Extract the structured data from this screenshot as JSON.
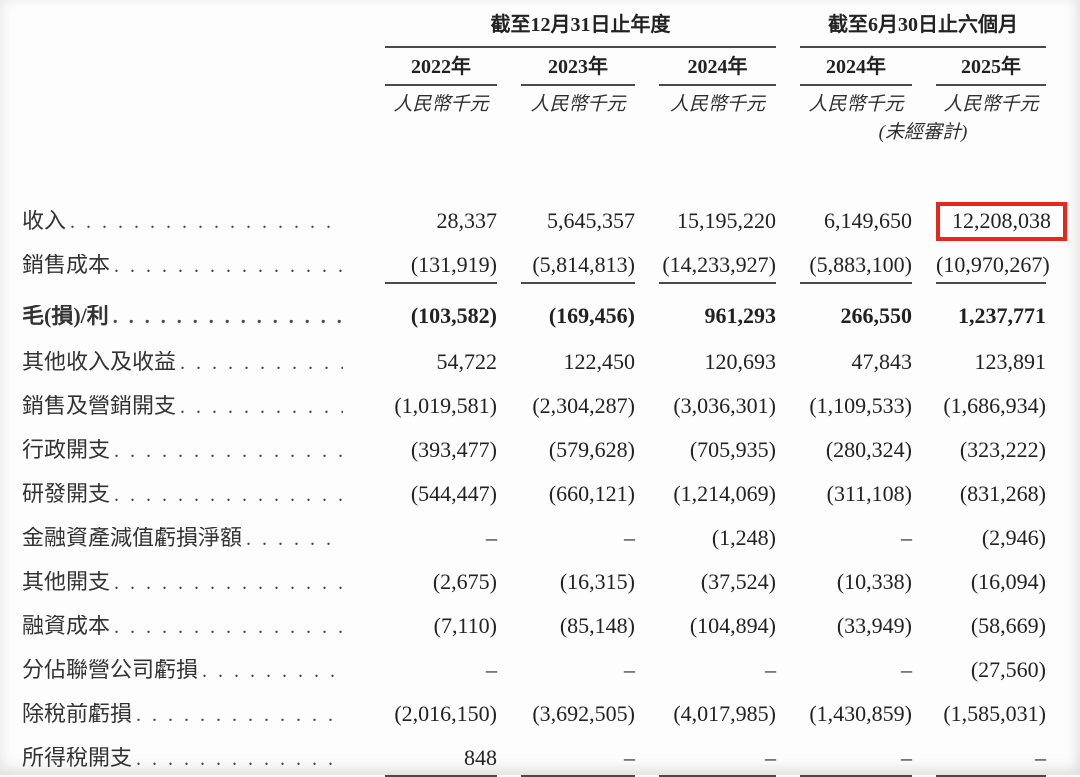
{
  "document_type": "financial-statement-table",
  "accent_red": "#e8271c",
  "table": {
    "col_groups": [
      {
        "title": "截至12月31日止年度",
        "years": [
          "2022年",
          "2023年",
          "2024年"
        ]
      },
      {
        "title": "截至6月30日止六個月",
        "years": [
          "2024年",
          "2025年"
        ]
      }
    ],
    "unit_label": "人民幣千元",
    "unaudited_note": "(未經審計)",
    "rows": [
      {
        "label": "收入",
        "values": [
          "28,337",
          "5,645,357",
          "15,195,220",
          "6,149,650",
          "12,208,038"
        ],
        "highlight_last": true
      },
      {
        "label": "銷售成本",
        "values": [
          "(131,919)",
          "(5,814,813)",
          "(14,233,927)",
          "(5,883,100)",
          "(10,970,267)"
        ],
        "rule_below": true
      },
      {
        "label": "毛(損)/利",
        "values": [
          "(103,582)",
          "(169,456)",
          "961,293",
          "266,550",
          "1,237,771"
        ],
        "bold": true
      },
      {
        "label": "其他收入及收益",
        "values": [
          "54,722",
          "122,450",
          "120,693",
          "47,843",
          "123,891"
        ]
      },
      {
        "label": "銷售及營銷開支",
        "values": [
          "(1,019,581)",
          "(2,304,287)",
          "(3,036,301)",
          "(1,109,533)",
          "(1,686,934)"
        ]
      },
      {
        "label": "行政開支",
        "values": [
          "(393,477)",
          "(579,628)",
          "(705,935)",
          "(280,324)",
          "(323,222)"
        ]
      },
      {
        "label": "研發開支",
        "values": [
          "(544,447)",
          "(660,121)",
          "(1,214,069)",
          "(311,108)",
          "(831,268)"
        ]
      },
      {
        "label": "金融資產減值虧損淨額",
        "values": [
          "–",
          "–",
          "(1,248)",
          "–",
          "(2,946)"
        ]
      },
      {
        "label": "其他開支",
        "values": [
          "(2,675)",
          "(16,315)",
          "(37,524)",
          "(10,338)",
          "(16,094)"
        ]
      },
      {
        "label": "融資成本",
        "values": [
          "(7,110)",
          "(85,148)",
          "(104,894)",
          "(33,949)",
          "(58,669)"
        ]
      },
      {
        "label": "分佔聯營公司虧損",
        "values": [
          "–",
          "–",
          "–",
          "–",
          "(27,560)"
        ]
      },
      {
        "label": "除稅前虧損",
        "values": [
          "(2,016,150)",
          "(3,692,505)",
          "(4,017,985)",
          "(1,430,859)",
          "(1,585,031)"
        ]
      },
      {
        "label": "所得稅開支",
        "values": [
          "848",
          "–",
          "–",
          "–",
          "–"
        ],
        "rule_below": true
      }
    ]
  }
}
